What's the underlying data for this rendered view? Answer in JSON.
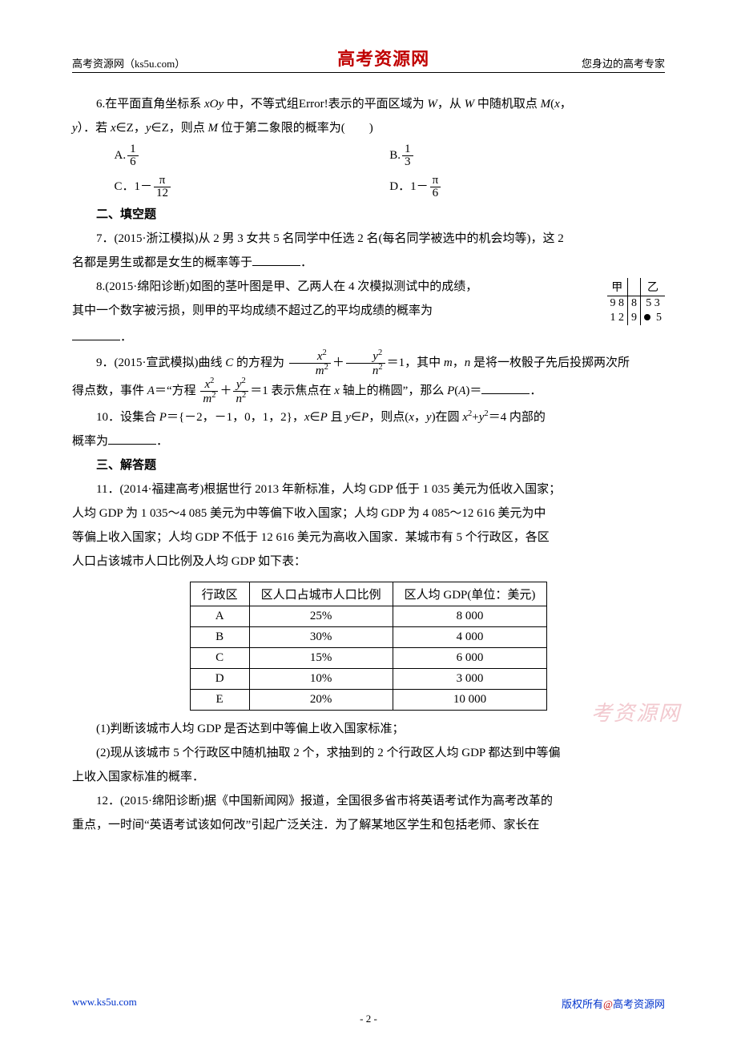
{
  "header": {
    "left": "高考资源网（ks5u.com）",
    "center": "高考资源网",
    "right": "您身边的高考专家"
  },
  "q6": {
    "text_a": "6.在平面直角坐标系 ",
    "xoy": "xOy",
    "text_b": " 中，不等式组Error!表示的平面区域为 ",
    "W1": "W",
    "text_c": "，从 ",
    "W2": "W",
    "text_d": " 中随机取点 ",
    "M1": "M",
    "paren_open": "(",
    "x": "x",
    "comma": "，",
    "line2_a": "y",
    "line2_b": "）．若 ",
    "line2_c": "x",
    "line2_d": "∈Z，",
    "line2_e": "y",
    "line2_f": "∈Z，则点 ",
    "line2_g": "M",
    "line2_h": " 位于第二象限的概率为(　　)",
    "A_label": "A.",
    "A_num": "1",
    "A_den": "6",
    "B_label": "B.",
    "B_num": "1",
    "B_den": "3",
    "C_label": "C．1－",
    "C_num": "π",
    "C_den": "12",
    "D_label": "D．1－",
    "D_num": "π",
    "D_den": "6"
  },
  "sec2": "二、填空题",
  "q7": {
    "pre": "7．(2015·浙江模拟)从 2 男 3 女共 5 名同学中任选 2 名(每名同学被选中的机会均等)，这 2",
    "line2": "名都是男生或都是女生的概率等于",
    "period": "．"
  },
  "q8": {
    "l1": "8.(2015·绵阳诊断)如图的茎叶图是甲、乙两人在 4 次模拟测试中的成绩，",
    "l2": "其中一个数字被污损，则甲的平均成绩不超过乙的平均成绩的概率为",
    "period": "．",
    "stem": {
      "h_l": "甲",
      "h_r": "乙",
      "r1_l": "9  8",
      "r1_m": "8",
      "r1_r": "5  3",
      "r2_l": "1  2",
      "r2_m": "9",
      "r2_r2": "5"
    }
  },
  "q9": {
    "a": "9．(2015·宣武模拟)曲线 ",
    "C": "C",
    "b": " 的方程为",
    "eq": "＝1，其中 ",
    "mn": "m",
    "c": "，",
    "n": "n",
    "d": " 是将一枚骰子先后投掷两次所",
    "l2a": "得点数，事件 ",
    "A": "A",
    "l2b": "＝“方程",
    "l2c": "＝1 表示焦点在 ",
    "xaxis": "x",
    "l2d": " 轴上的椭圆”，那么 ",
    "PA": "P",
    "paren": "(",
    "A2": "A",
    "paren2": ")＝",
    "period": "．",
    "frac": {
      "xn": "x",
      "xp": "2",
      "md": "m",
      "mp": "2",
      "yn": "y",
      "yp": "2",
      "nd": "n",
      "np": "2"
    }
  },
  "q10": {
    "a": "10．设集合 ",
    "P": "P",
    "b": "＝{－2，－1，0，1，2}，",
    "x": "x",
    "c": "∈",
    "P2": "P",
    "d": " 且 ",
    "y": "y",
    "e": "∈",
    "P3": "P",
    "f": "，则点(",
    "x2": "x",
    "g": "，",
    "y2": "y",
    "h": ")在圆 ",
    "x3": "x",
    "i": "+",
    "y3": "y",
    "j": "＝4 内部的",
    "l2": "概率为",
    "period": "．"
  },
  "sec3": "三、解答题",
  "q11": {
    "l1": "11．(2014·福建高考)根据世行 2013 年新标准，人均 GDP 低于 1 035  美元为低收入国家；",
    "l2": "人均 GDP 为 1 035～4 085  美元为中等偏下收入国家；人均 GDP 为 4 085～12 616  美元为中",
    "l3": "等偏上收入国家；人均 GDP 不低于 12 616  美元为高收入国家．某城市有 5 个行政区，各区",
    "l4": "人口占该城市人口比例及人均 GDP 如下表：",
    "tbl": {
      "h1": "行政区",
      "h2": "区人口占城市人口比例",
      "h3": "区人均 GDP(单位：美元)",
      "rows": [
        [
          "A",
          "25%",
          "8 000"
        ],
        [
          "B",
          "30%",
          "4 000"
        ],
        [
          "C",
          "15%",
          "6 000"
        ],
        [
          "D",
          "10%",
          "3 000"
        ],
        [
          "E",
          "20%",
          "10 000"
        ]
      ]
    },
    "p1": "(1)判断该城市人均 GDP 是否达到中等偏上收入国家标准；",
    "p2": "(2)现从该城市 5 个行政区中随机抽取 2 个，求抽到的 2 个行政区人均 GDP 都达到中等偏",
    "p2b": "上收入国家标准的概率．"
  },
  "q12": {
    "l1": "12．(2015·绵阳诊断)据《中国新闻网》报道，全国很多省市将英语考试作为高考改革的",
    "l2": "重点，一时间“英语考试该如何改”引起广泛关注．为了解某地区学生和包括老师、家长在"
  },
  "watermark": "考资源网",
  "footer": {
    "left": "www.ks5u.com",
    "right_a": "版权所有",
    "right_at": "@",
    "right_b": "高考资源网",
    "page": "- 2 -"
  }
}
